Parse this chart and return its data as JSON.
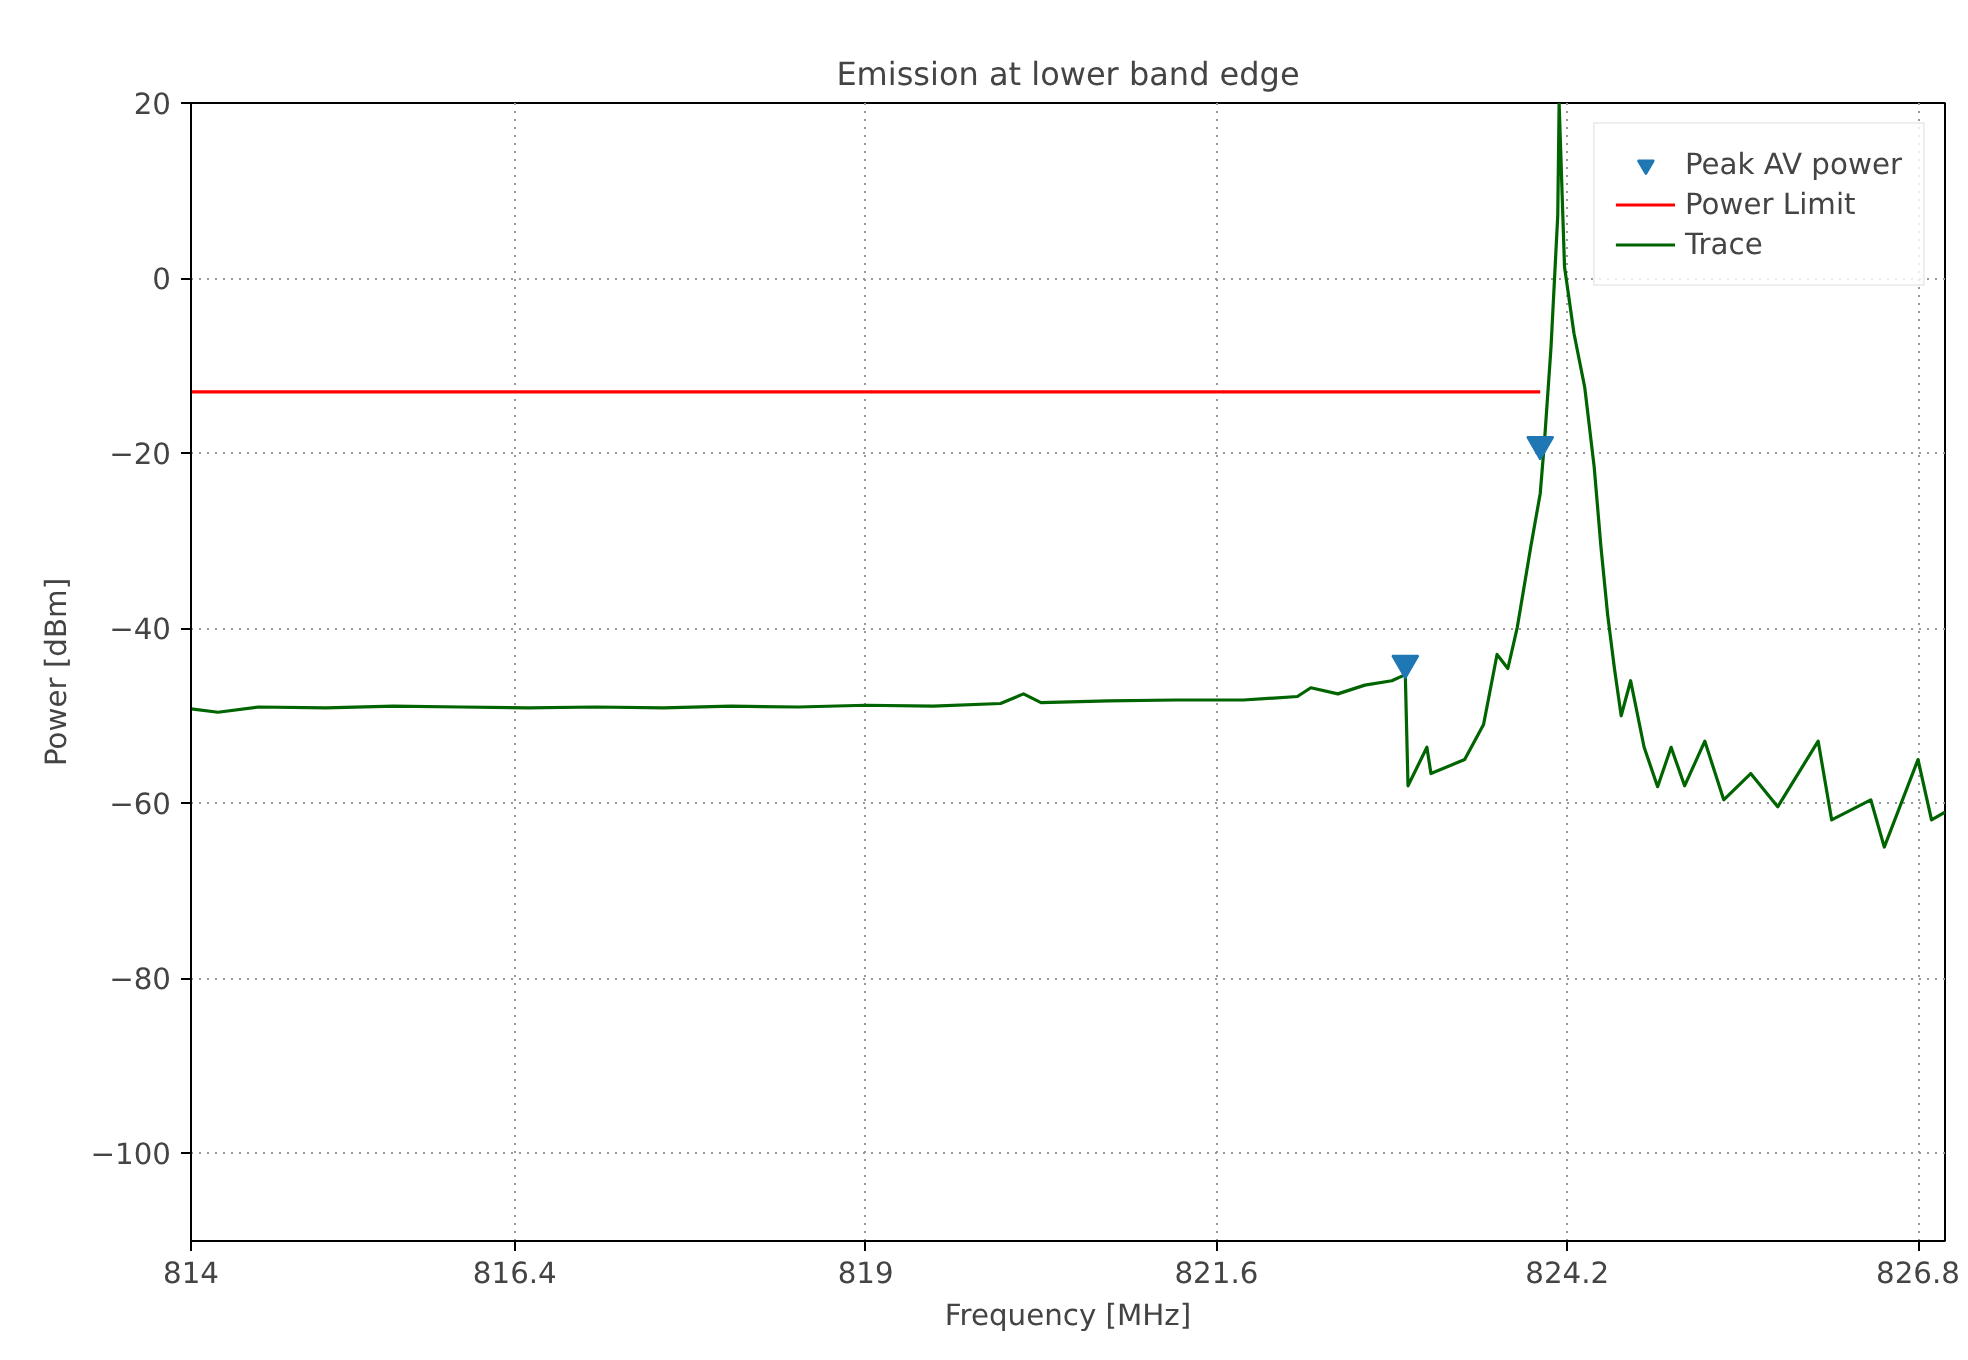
{
  "chart_data": {
    "type": "line",
    "title": "Emission at lower band edge",
    "xlabel": "Frequency [MHz]",
    "ylabel": "Power [dBm]",
    "xlim": [
      814,
      827.0
    ],
    "ylim": [
      -110,
      20
    ],
    "xticks": [
      814,
      816.4,
      819,
      821.6,
      824.2,
      826.8
    ],
    "yticks": [
      -100,
      -80,
      -60,
      -40,
      -20,
      0,
      20
    ],
    "grid": true,
    "legend": "top right",
    "series": [
      {
        "name": "Peak AV power",
        "type": "scatter",
        "marker": "triangle",
        "color": "#1f77b4",
        "x": [
          823.0,
          824.0
        ],
        "values": [
          -44,
          -19
        ]
      },
      {
        "name": "Power Limit",
        "type": "line",
        "color": "#ff0000",
        "x": [
          814,
          824.0
        ],
        "values": [
          -13,
          -13
        ]
      },
      {
        "name": "Trace",
        "color": "#006400",
        "x": [
          814,
          814.2,
          814.5,
          815,
          815.5,
          816,
          816.5,
          817,
          817.5,
          818,
          818.5,
          819,
          819.5,
          820,
          820.17,
          820.3,
          820.8,
          821.3,
          821.8,
          822.2,
          822.3,
          822.5,
          822.7,
          822.9,
          823.0,
          823.02,
          823.16,
          823.19,
          823.44,
          823.58,
          823.68,
          823.76,
          823.83,
          823.93,
          824.0,
          824.03,
          824.08,
          824.13,
          824.14,
          824.18,
          824.25,
          824.33,
          824.4,
          824.45,
          824.5,
          824.55,
          824.6,
          824.67,
          824.77,
          824.87,
          824.97,
          825.07,
          825.22,
          825.36,
          825.56,
          825.76,
          826.06,
          826.16,
          826.45,
          826.55,
          826.8,
          826.9,
          827.0
        ],
        "values": [
          -49.2,
          -49.6,
          -49.0,
          -49.1,
          -48.9,
          -49.0,
          -49.1,
          -49.0,
          -49.1,
          -48.9,
          -49.0,
          -48.8,
          -48.9,
          -48.6,
          -47.5,
          -48.5,
          -48.3,
          -48.2,
          -48.2,
          -47.8,
          -46.8,
          -47.5,
          -46.5,
          -46.0,
          -45.3,
          -58,
          -53.6,
          -56.6,
          -55,
          -51,
          -43,
          -44.6,
          -39.9,
          -30.7,
          -24.6,
          -19,
          -7.9,
          7.2,
          20,
          1.3,
          -6.3,
          -12.5,
          -21.6,
          -30.7,
          -38.5,
          -44.6,
          -50,
          -46,
          -53.6,
          -58.1,
          -53.6,
          -58,
          -52.9,
          -59.6,
          -56.6,
          -60.4,
          -52.9,
          -61.9,
          -59.6,
          -65,
          -55,
          -61.9,
          -61
        ]
      }
    ]
  }
}
